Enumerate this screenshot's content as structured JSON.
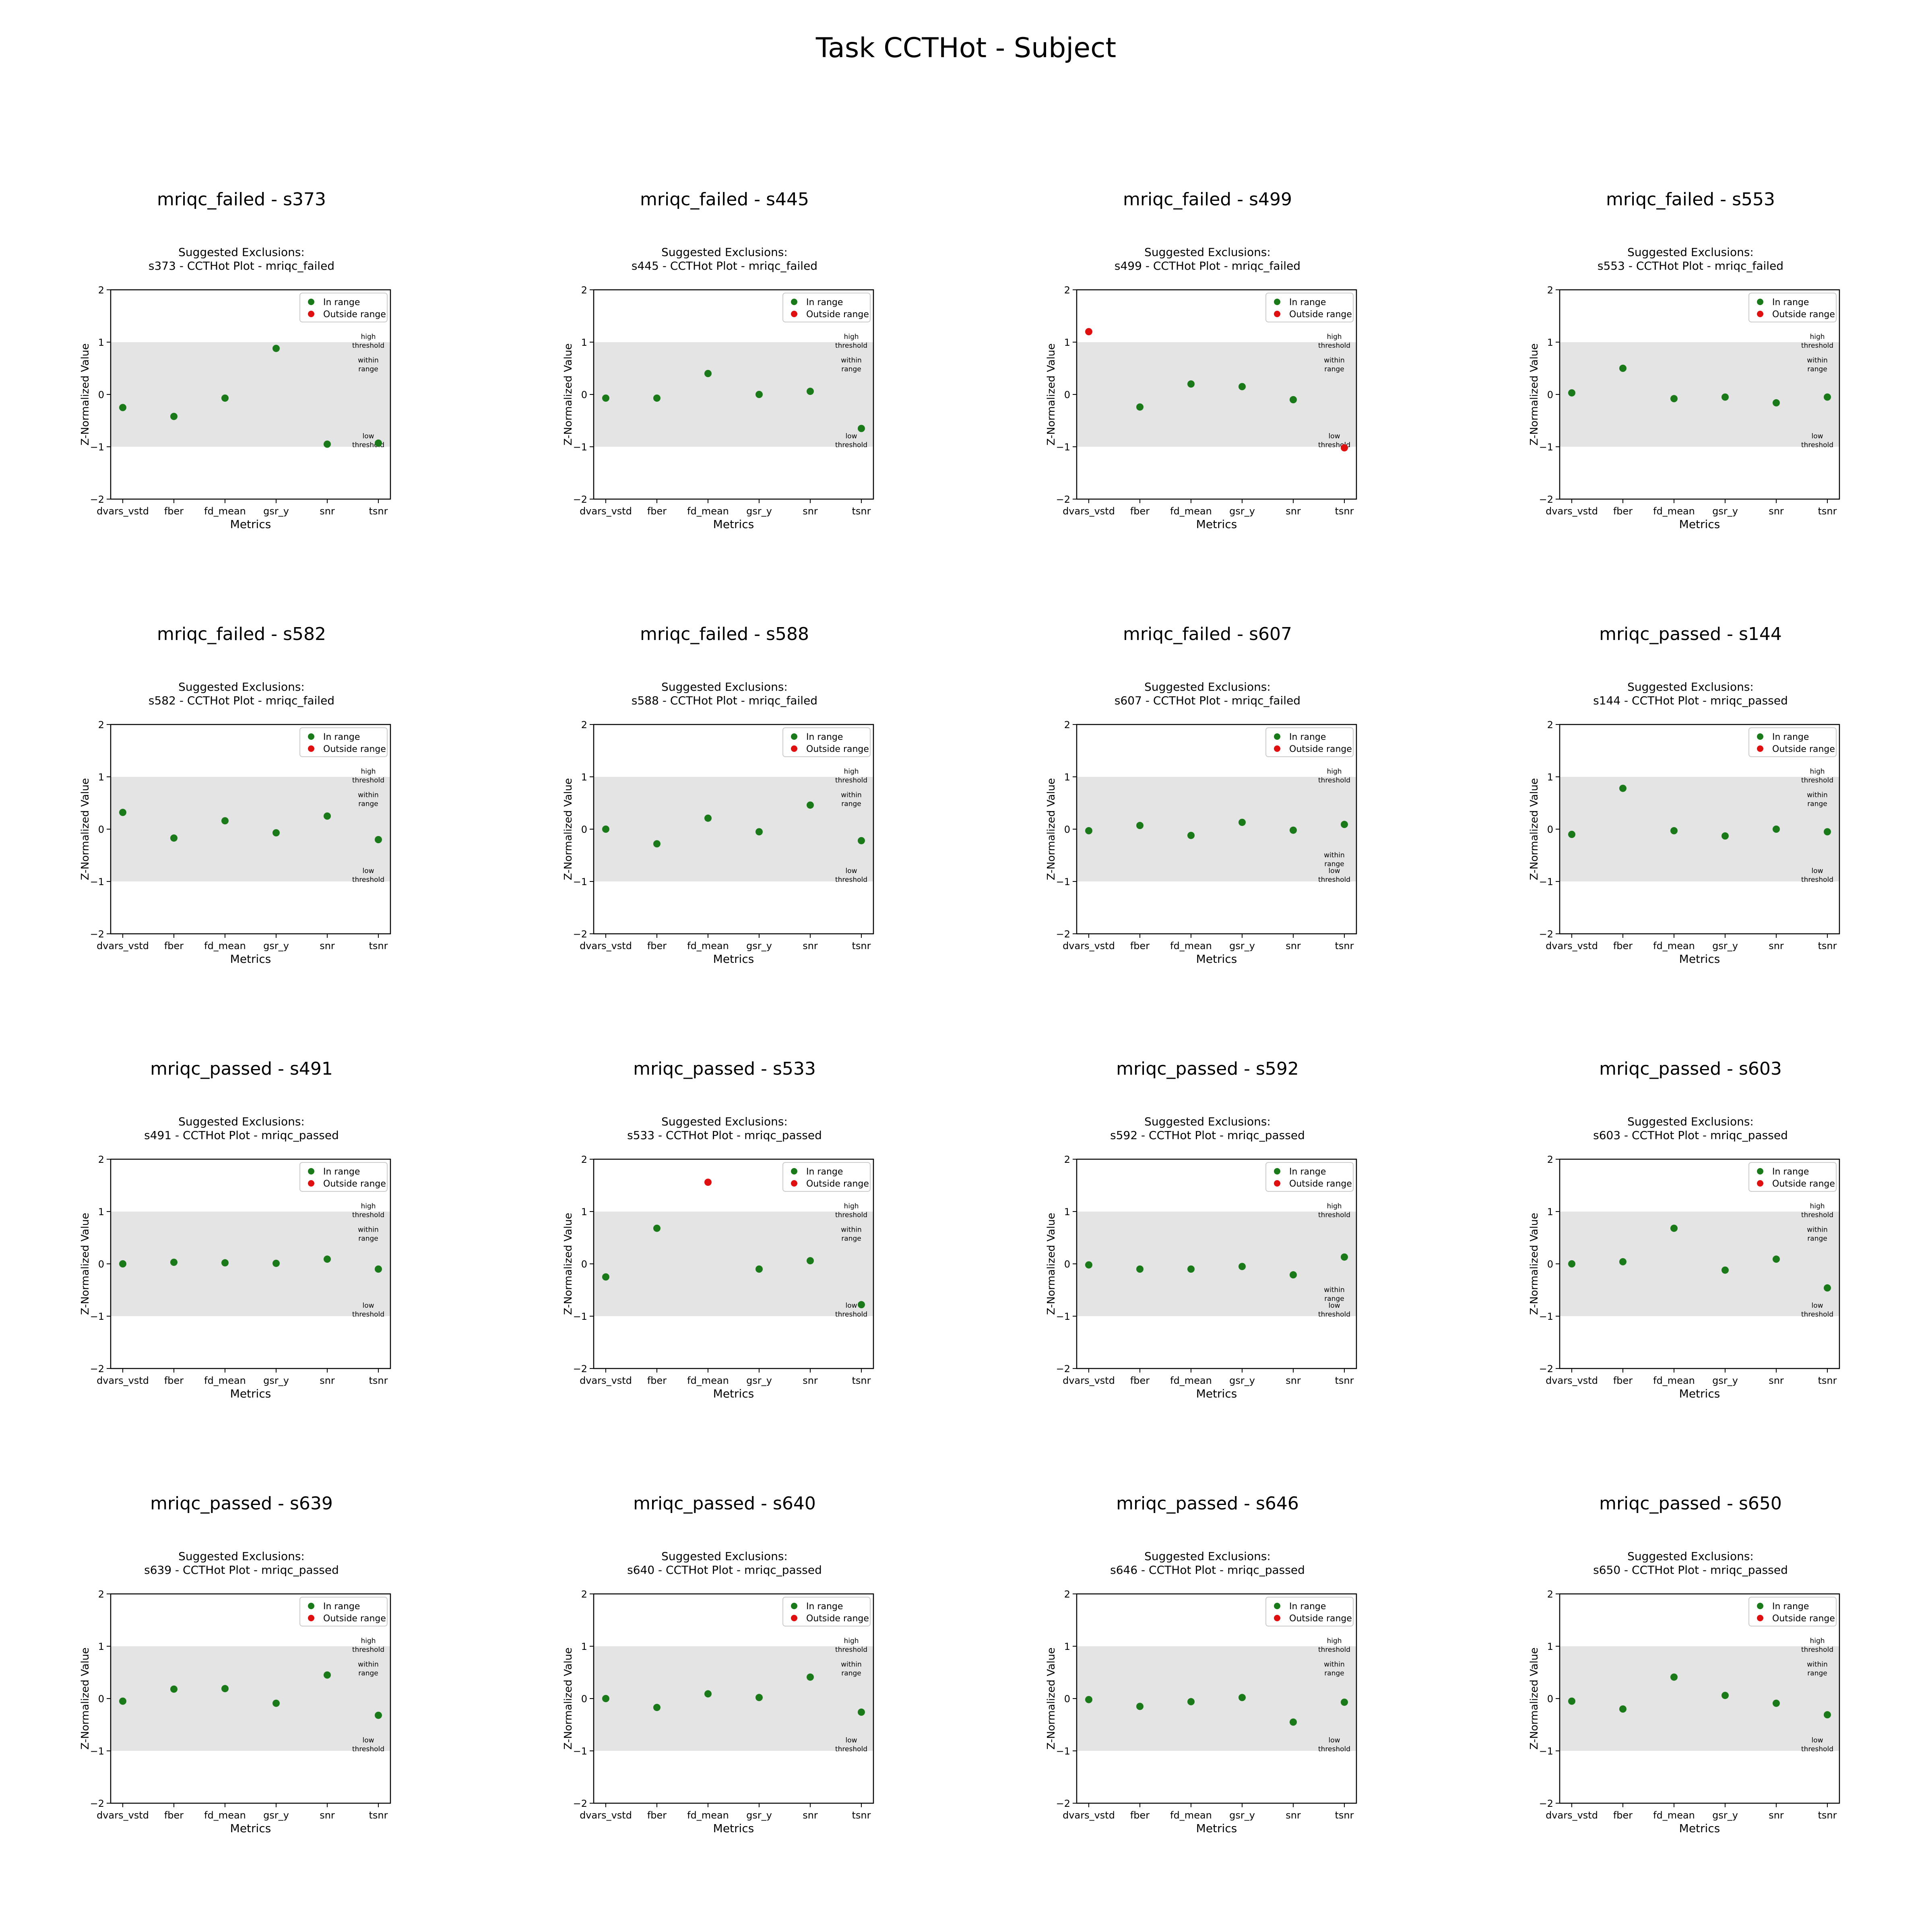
{
  "figure": {
    "title": "Task CCTHot - Subject"
  },
  "legend": {
    "in_range": "In range",
    "outside_range": "Outside range",
    "in_range_color": "#1a7a1a",
    "outside_range_color": "#e01010"
  },
  "band_labels": {
    "high": [
      "high",
      "threshold"
    ],
    "within": [
      "within",
      "range"
    ],
    "low": [
      "low",
      "threshold"
    ]
  },
  "chart_data": [
    {
      "type": "scatter",
      "panel_title": "mriqc_failed - s373",
      "title": [
        "Suggested Exclusions:",
        "s373 - CCTHot Plot - mriqc_failed"
      ],
      "xlabel": "Metrics",
      "ylabel": "Z-Normalized Value",
      "categories": [
        "dvars_vstd",
        "fber",
        "fd_mean",
        "gsr_y",
        "snr",
        "tsnr"
      ],
      "values": [
        -0.25,
        -0.42,
        -0.07,
        0.88,
        -0.95,
        -0.93
      ],
      "ylim": [
        -2,
        2
      ],
      "yticks": [
        2,
        1,
        0,
        -1,
        -2
      ],
      "band": [
        -1,
        1
      ],
      "within_pos": "upper"
    },
    {
      "type": "scatter",
      "panel_title": "mriqc_failed - s445",
      "title": [
        "Suggested Exclusions:",
        "s445 - CCTHot Plot - mriqc_failed"
      ],
      "xlabel": "Metrics",
      "ylabel": "Z-Normalized Value",
      "categories": [
        "dvars_vstd",
        "fber",
        "fd_mean",
        "gsr_y",
        "snr",
        "tsnr"
      ],
      "values": [
        -0.07,
        -0.07,
        0.4,
        0.0,
        0.06,
        -0.65
      ],
      "ylim": [
        -2,
        2
      ],
      "yticks": [
        2,
        1,
        0,
        -1,
        -2
      ],
      "band": [
        -1,
        1
      ],
      "within_pos": "upper"
    },
    {
      "type": "scatter",
      "panel_title": "mriqc_failed - s499",
      "title": [
        "Suggested Exclusions:",
        "s499 - CCTHot Plot - mriqc_failed"
      ],
      "xlabel": "Metrics",
      "ylabel": "Z-Normalized Value",
      "categories": [
        "dvars_vstd",
        "fber",
        "fd_mean",
        "gsr_y",
        "snr",
        "tsnr"
      ],
      "values": [
        1.2,
        -0.24,
        0.2,
        0.15,
        -0.1,
        -1.02
      ],
      "ylim": [
        -2,
        2
      ],
      "yticks": [
        2,
        1,
        0,
        -1,
        -2
      ],
      "band": [
        -1,
        1
      ],
      "within_pos": "upper",
      "outside": [
        0,
        5
      ]
    },
    {
      "type": "scatter",
      "panel_title": "mriqc_failed - s553",
      "title": [
        "Suggested Exclusions:",
        "s553 - CCTHot Plot - mriqc_failed"
      ],
      "xlabel": "Metrics",
      "ylabel": "Z-Normalized Value",
      "categories": [
        "dvars_vstd",
        "fber",
        "fd_mean",
        "gsr_y",
        "snr",
        "tsnr"
      ],
      "values": [
        0.03,
        0.5,
        -0.08,
        -0.05,
        -0.16,
        -0.05
      ],
      "ylim": [
        -2,
        2
      ],
      "yticks": [
        2,
        1,
        0,
        -1,
        -2
      ],
      "band": [
        -1,
        1
      ],
      "within_pos": "upper"
    },
    {
      "type": "scatter",
      "panel_title": "mriqc_failed - s582",
      "title": [
        "Suggested Exclusions:",
        "s582 - CCTHot Plot - mriqc_failed"
      ],
      "xlabel": "Metrics",
      "ylabel": "Z-Normalized Value",
      "categories": [
        "dvars_vstd",
        "fber",
        "fd_mean",
        "gsr_y",
        "snr",
        "tsnr"
      ],
      "values": [
        0.32,
        -0.17,
        0.16,
        -0.07,
        0.25,
        -0.2
      ],
      "ylim": [
        -2,
        2
      ],
      "yticks": [
        2,
        1,
        0,
        -1,
        -2
      ],
      "band": [
        -1,
        1
      ],
      "within_pos": "upper"
    },
    {
      "type": "scatter",
      "panel_title": "mriqc_failed - s588",
      "title": [
        "Suggested Exclusions:",
        "s588 - CCTHot Plot - mriqc_failed"
      ],
      "xlabel": "Metrics",
      "ylabel": "Z-Normalized Value",
      "categories": [
        "dvars_vstd",
        "fber",
        "fd_mean",
        "gsr_y",
        "snr",
        "tsnr"
      ],
      "values": [
        0.0,
        -0.28,
        0.21,
        -0.05,
        0.46,
        -0.22
      ],
      "ylim": [
        -2,
        2
      ],
      "yticks": [
        2,
        1,
        0,
        -1,
        -2
      ],
      "band": [
        -1,
        1
      ],
      "within_pos": "upper"
    },
    {
      "type": "scatter",
      "panel_title": "mriqc_failed - s607",
      "title": [
        "Suggested Exclusions:",
        "s607 - CCTHot Plot - mriqc_failed"
      ],
      "xlabel": "Metrics",
      "ylabel": "Z-Normalized Value",
      "categories": [
        "dvars_vstd",
        "fber",
        "fd_mean",
        "gsr_y",
        "snr",
        "tsnr"
      ],
      "values": [
        -0.03,
        0.07,
        -0.12,
        0.13,
        -0.02,
        0.09
      ],
      "ylim": [
        -2,
        2
      ],
      "yticks": [
        2,
        1,
        0,
        -1,
        -2
      ],
      "band": [
        -1,
        1
      ],
      "within_pos": "lower"
    },
    {
      "type": "scatter",
      "panel_title": "mriqc_passed - s144",
      "title": [
        "Suggested Exclusions:",
        "s144 - CCTHot Plot - mriqc_passed"
      ],
      "xlabel": "Metrics",
      "ylabel": "Z-Normalized Value",
      "categories": [
        "dvars_vstd",
        "fber",
        "fd_mean",
        "gsr_y",
        "snr",
        "tsnr"
      ],
      "values": [
        -0.1,
        0.78,
        -0.03,
        -0.13,
        0.0,
        -0.05
      ],
      "ylim": [
        -2,
        2
      ],
      "yticks": [
        2,
        1,
        0,
        -1,
        -2
      ],
      "band": [
        -1,
        1
      ],
      "within_pos": "upper"
    },
    {
      "type": "scatter",
      "panel_title": "mriqc_passed - s491",
      "title": [
        "Suggested Exclusions:",
        "s491 - CCTHot Plot - mriqc_passed"
      ],
      "xlabel": "Metrics",
      "ylabel": "Z-Normalized Value",
      "categories": [
        "dvars_vstd",
        "fber",
        "fd_mean",
        "gsr_y",
        "snr",
        "tsnr"
      ],
      "values": [
        0.0,
        0.03,
        0.02,
        0.01,
        0.09,
        -0.1
      ],
      "ylim": [
        -2,
        2
      ],
      "yticks": [
        2,
        1,
        0,
        -1,
        -2
      ],
      "band": [
        -1,
        1
      ],
      "within_pos": "upper"
    },
    {
      "type": "scatter",
      "panel_title": "mriqc_passed - s533",
      "title": [
        "Suggested Exclusions:",
        "s533 - CCTHot Plot - mriqc_passed"
      ],
      "xlabel": "Metrics",
      "ylabel": "Z-Normalized Value",
      "categories": [
        "dvars_vstd",
        "fber",
        "fd_mean",
        "gsr_y",
        "snr",
        "tsnr"
      ],
      "values": [
        -0.25,
        0.68,
        1.56,
        -0.1,
        0.06,
        -0.78
      ],
      "ylim": [
        -2,
        2
      ],
      "yticks": [
        2,
        1,
        0,
        -1,
        -2
      ],
      "band": [
        -1,
        1
      ],
      "within_pos": "upper",
      "outside": [
        2
      ]
    },
    {
      "type": "scatter",
      "panel_title": "mriqc_passed - s592",
      "title": [
        "Suggested Exclusions:",
        "s592 - CCTHot Plot - mriqc_passed"
      ],
      "xlabel": "Metrics",
      "ylabel": "Z-Normalized Value",
      "categories": [
        "dvars_vstd",
        "fber",
        "fd_mean",
        "gsr_y",
        "snr",
        "tsnr"
      ],
      "values": [
        -0.02,
        -0.1,
        -0.1,
        -0.05,
        -0.21,
        0.13
      ],
      "ylim": [
        -2,
        2
      ],
      "yticks": [
        2,
        1,
        0,
        -1,
        -2
      ],
      "band": [
        -1,
        1
      ],
      "within_pos": "lower"
    },
    {
      "type": "scatter",
      "panel_title": "mriqc_passed - s603",
      "title": [
        "Suggested Exclusions:",
        "s603 - CCTHot Plot - mriqc_passed"
      ],
      "xlabel": "Metrics",
      "ylabel": "Z-Normalized Value",
      "categories": [
        "dvars_vstd",
        "fber",
        "fd_mean",
        "gsr_y",
        "snr",
        "tsnr"
      ],
      "values": [
        0.0,
        0.04,
        0.68,
        -0.12,
        0.09,
        -0.46
      ],
      "ylim": [
        -2,
        2
      ],
      "yticks": [
        2,
        1,
        0,
        -1,
        -2
      ],
      "band": [
        -1,
        1
      ],
      "within_pos": "upper"
    },
    {
      "type": "scatter",
      "panel_title": "mriqc_passed - s639",
      "title": [
        "Suggested Exclusions:",
        "s639 - CCTHot Plot - mriqc_passed"
      ],
      "xlabel": "Metrics",
      "ylabel": "Z-Normalized Value",
      "categories": [
        "dvars_vstd",
        "fber",
        "fd_mean",
        "gsr_y",
        "snr",
        "tsnr"
      ],
      "values": [
        -0.05,
        0.18,
        0.19,
        -0.09,
        0.45,
        -0.32
      ],
      "ylim": [
        -2,
        2
      ],
      "yticks": [
        2,
        1,
        0,
        -1,
        -2
      ],
      "band": [
        -1,
        1
      ],
      "within_pos": "upper"
    },
    {
      "type": "scatter",
      "panel_title": "mriqc_passed - s640",
      "title": [
        "Suggested Exclusions:",
        "s640 - CCTHot Plot - mriqc_passed"
      ],
      "xlabel": "Metrics",
      "ylabel": "Z-Normalized Value",
      "categories": [
        "dvars_vstd",
        "fber",
        "fd_mean",
        "gsr_y",
        "snr",
        "tsnr"
      ],
      "values": [
        0.0,
        -0.17,
        0.09,
        0.02,
        0.41,
        -0.26
      ],
      "ylim": [
        -2,
        2
      ],
      "yticks": [
        2,
        1,
        0,
        -1,
        -2
      ],
      "band": [
        -1,
        1
      ],
      "within_pos": "upper"
    },
    {
      "type": "scatter",
      "panel_title": "mriqc_passed - s646",
      "title": [
        "Suggested Exclusions:",
        "s646 - CCTHot Plot - mriqc_passed"
      ],
      "xlabel": "Metrics",
      "ylabel": "Z-Normalized Value",
      "categories": [
        "dvars_vstd",
        "fber",
        "fd_mean",
        "gsr_y",
        "snr",
        "tsnr"
      ],
      "values": [
        -0.02,
        -0.15,
        -0.06,
        0.02,
        -0.45,
        -0.07
      ],
      "ylim": [
        -2,
        2
      ],
      "yticks": [
        2,
        1,
        0,
        -1,
        -2
      ],
      "band": [
        -1,
        1
      ],
      "within_pos": "upper"
    },
    {
      "type": "scatter",
      "panel_title": "mriqc_passed - s650",
      "title": [
        "Suggested Exclusions:",
        "s650 - CCTHot Plot - mriqc_passed"
      ],
      "xlabel": "Metrics",
      "ylabel": "Z-Normalized Value",
      "categories": [
        "dvars_vstd",
        "fber",
        "fd_mean",
        "gsr_y",
        "snr",
        "tsnr"
      ],
      "values": [
        -0.05,
        -0.2,
        0.41,
        0.06,
        -0.09,
        -0.31
      ],
      "ylim": [
        -2,
        2
      ],
      "yticks": [
        2,
        1,
        0,
        -1,
        -2
      ],
      "band": [
        -1,
        1
      ],
      "within_pos": "upper"
    }
  ]
}
